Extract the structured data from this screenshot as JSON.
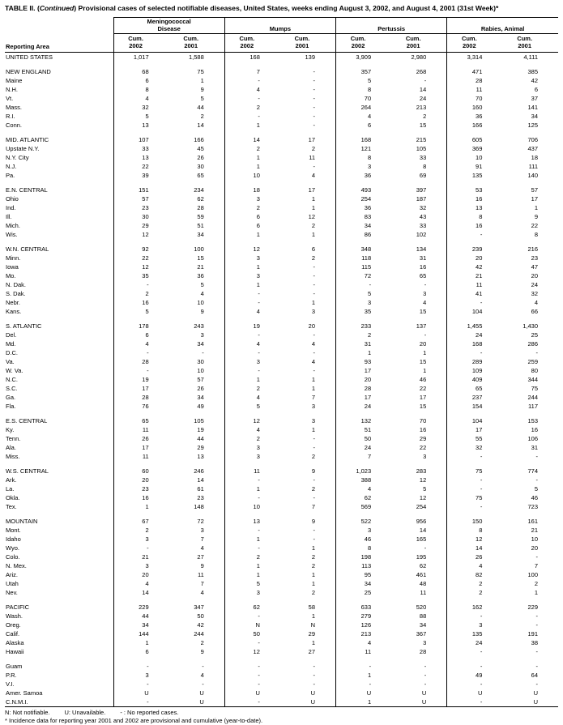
{
  "title": {
    "parts": [
      "TABLE II. (",
      "Continued",
      ") Provisional cases of selected notifiable diseases, United States, weeks ending August 3, 2002, and August 4, 2001 (31st Week)*"
    ]
  },
  "table": {
    "reporting_area_label": "Reporting Area",
    "cum_label": "Cum.",
    "years": [
      "2002",
      "2001"
    ],
    "groups": [
      "Meningococcal\nDisease",
      "Mumps",
      "Pertussis",
      "Rabies, Animal"
    ],
    "sections": [
      {
        "rows": [
          {
            "area": "UNITED STATES",
            "v": [
              "1,017",
              "1,588",
              "168",
              "139",
              "3,909",
              "2,980",
              "3,314",
              "4,111"
            ]
          }
        ]
      },
      {
        "rows": [
          {
            "area": "NEW ENGLAND",
            "v": [
              "68",
              "75",
              "7",
              "-",
              "357",
              "268",
              "471",
              "385"
            ]
          },
          {
            "area": "Maine",
            "v": [
              "6",
              "1",
              "-",
              "-",
              "5",
              "-",
              "28",
              "42"
            ]
          },
          {
            "area": "N.H.",
            "v": [
              "8",
              "9",
              "4",
              "-",
              "8",
              "14",
              "11",
              "6"
            ]
          },
          {
            "area": "Vt.",
            "v": [
              "4",
              "5",
              "-",
              "-",
              "70",
              "24",
              "70",
              "37"
            ]
          },
          {
            "area": "Mass.",
            "v": [
              "32",
              "44",
              "2",
              "-",
              "264",
              "213",
              "160",
              "141"
            ]
          },
          {
            "area": "R.I.",
            "v": [
              "5",
              "2",
              "-",
              "-",
              "4",
              "2",
              "36",
              "34"
            ]
          },
          {
            "area": "Conn.",
            "v": [
              "13",
              "14",
              "1",
              "-",
              "6",
              "15",
              "166",
              "125"
            ]
          }
        ]
      },
      {
        "rows": [
          {
            "area": "MID. ATLANTIC",
            "v": [
              "107",
              "166",
              "14",
              "17",
              "168",
              "215",
              "605",
              "706"
            ]
          },
          {
            "area": "Upstate N.Y.",
            "v": [
              "33",
              "45",
              "2",
              "2",
              "121",
              "105",
              "369",
              "437"
            ]
          },
          {
            "area": "N.Y. City",
            "v": [
              "13",
              "26",
              "1",
              "11",
              "8",
              "33",
              "10",
              "18"
            ]
          },
          {
            "area": "N.J.",
            "v": [
              "22",
              "30",
              "1",
              "-",
              "3",
              "8",
              "91",
              "111"
            ]
          },
          {
            "area": "Pa.",
            "v": [
              "39",
              "65",
              "10",
              "4",
              "36",
              "69",
              "135",
              "140"
            ]
          }
        ]
      },
      {
        "rows": [
          {
            "area": "E.N. CENTRAL",
            "v": [
              "151",
              "234",
              "18",
              "17",
              "493",
              "397",
              "53",
              "57"
            ]
          },
          {
            "area": "Ohio",
            "v": [
              "57",
              "62",
              "3",
              "1",
              "254",
              "187",
              "16",
              "17"
            ]
          },
          {
            "area": "Ind.",
            "v": [
              "23",
              "28",
              "2",
              "1",
              "36",
              "32",
              "13",
              "1"
            ]
          },
          {
            "area": "Ill.",
            "v": [
              "30",
              "59",
              "6",
              "12",
              "83",
              "43",
              "8",
              "9"
            ]
          },
          {
            "area": "Mich.",
            "v": [
              "29",
              "51",
              "6",
              "2",
              "34",
              "33",
              "16",
              "22"
            ]
          },
          {
            "area": "Wis.",
            "v": [
              "12",
              "34",
              "1",
              "1",
              "86",
              "102",
              "-",
              "8"
            ]
          }
        ]
      },
      {
        "rows": [
          {
            "area": "W.N. CENTRAL",
            "v": [
              "92",
              "100",
              "12",
              "6",
              "348",
              "134",
              "239",
              "216"
            ]
          },
          {
            "area": "Minn.",
            "v": [
              "22",
              "15",
              "3",
              "2",
              "118",
              "31",
              "20",
              "23"
            ]
          },
          {
            "area": "Iowa",
            "v": [
              "12",
              "21",
              "1",
              "-",
              "115",
              "16",
              "42",
              "47"
            ]
          },
          {
            "area": "Mo.",
            "v": [
              "35",
              "36",
              "3",
              "-",
              "72",
              "65",
              "21",
              "20"
            ]
          },
          {
            "area": "N. Dak.",
            "v": [
              "-",
              "5",
              "1",
              "-",
              "-",
              "-",
              "11",
              "24"
            ]
          },
          {
            "area": "S. Dak.",
            "v": [
              "2",
              "4",
              "-",
              "-",
              "5",
              "3",
              "41",
              "32"
            ]
          },
          {
            "area": "Nebr.",
            "v": [
              "16",
              "10",
              "-",
              "1",
              "3",
              "4",
              "-",
              "4"
            ]
          },
          {
            "area": "Kans.",
            "v": [
              "5",
              "9",
              "4",
              "3",
              "35",
              "15",
              "104",
              "66"
            ]
          }
        ]
      },
      {
        "rows": [
          {
            "area": "S. ATLANTIC",
            "v": [
              "178",
              "243",
              "19",
              "20",
              "233",
              "137",
              "1,455",
              "1,430"
            ]
          },
          {
            "area": "Del.",
            "v": [
              "6",
              "3",
              "-",
              "-",
              "2",
              "-",
              "24",
              "25"
            ]
          },
          {
            "area": "Md.",
            "v": [
              "4",
              "34",
              "4",
              "4",
              "31",
              "20",
              "168",
              "286"
            ]
          },
          {
            "area": "D.C.",
            "v": [
              "-",
              "-",
              "-",
              "-",
              "1",
              "1",
              "-",
              "-"
            ]
          },
          {
            "area": "Va.",
            "v": [
              "28",
              "30",
              "3",
              "4",
              "93",
              "15",
              "289",
              "259"
            ]
          },
          {
            "area": "W. Va.",
            "v": [
              "-",
              "10",
              "-",
              "-",
              "17",
              "1",
              "109",
              "80"
            ]
          },
          {
            "area": "N.C.",
            "v": [
              "19",
              "57",
              "1",
              "1",
              "20",
              "46",
              "409",
              "344"
            ]
          },
          {
            "area": "S.C.",
            "v": [
              "17",
              "26",
              "2",
              "1",
              "28",
              "22",
              "65",
              "75"
            ]
          },
          {
            "area": "Ga.",
            "v": [
              "28",
              "34",
              "4",
              "7",
              "17",
              "17",
              "237",
              "244"
            ]
          },
          {
            "area": "Fla.",
            "v": [
              "76",
              "49",
              "5",
              "3",
              "24",
              "15",
              "154",
              "117"
            ]
          }
        ]
      },
      {
        "rows": [
          {
            "area": "E.S. CENTRAL",
            "v": [
              "65",
              "105",
              "12",
              "3",
              "132",
              "70",
              "104",
              "153"
            ]
          },
          {
            "area": "Ky.",
            "v": [
              "11",
              "19",
              "4",
              "1",
              "51",
              "16",
              "17",
              "16"
            ]
          },
          {
            "area": "Tenn.",
            "v": [
              "26",
              "44",
              "2",
              "-",
              "50",
              "29",
              "55",
              "106"
            ]
          },
          {
            "area": "Ala.",
            "v": [
              "17",
              "29",
              "3",
              "-",
              "24",
              "22",
              "32",
              "31"
            ]
          },
          {
            "area": "Miss.",
            "v": [
              "11",
              "13",
              "3",
              "2",
              "7",
              "3",
              "-",
              "-"
            ]
          }
        ]
      },
      {
        "rows": [
          {
            "area": "W.S. CENTRAL",
            "v": [
              "60",
              "246",
              "11",
              "9",
              "1,023",
              "283",
              "75",
              "774"
            ]
          },
          {
            "area": "Ark.",
            "v": [
              "20",
              "14",
              "-",
              "-",
              "388",
              "12",
              "-",
              "-"
            ]
          },
          {
            "area": "La.",
            "v": [
              "23",
              "61",
              "1",
              "2",
              "4",
              "5",
              "-",
              "5"
            ]
          },
          {
            "area": "Okla.",
            "v": [
              "16",
              "23",
              "-",
              "-",
              "62",
              "12",
              "75",
              "46"
            ]
          },
          {
            "area": "Tex.",
            "v": [
              "1",
              "148",
              "10",
              "7",
              "569",
              "254",
              "-",
              "723"
            ]
          }
        ]
      },
      {
        "rows": [
          {
            "area": "MOUNTAIN",
            "v": [
              "67",
              "72",
              "13",
              "9",
              "522",
              "956",
              "150",
              "161"
            ]
          },
          {
            "area": "Mont.",
            "v": [
              "2",
              "3",
              "-",
              "-",
              "3",
              "14",
              "8",
              "21"
            ]
          },
          {
            "area": "Idaho",
            "v": [
              "3",
              "7",
              "1",
              "-",
              "46",
              "165",
              "12",
              "10"
            ]
          },
          {
            "area": "Wyo.",
            "v": [
              "-",
              "4",
              "-",
              "1",
              "8",
              "-",
              "14",
              "20"
            ]
          },
          {
            "area": "Colo.",
            "v": [
              "21",
              "27",
              "2",
              "2",
              "198",
              "195",
              "26",
              "-"
            ]
          },
          {
            "area": "N. Mex.",
            "v": [
              "3",
              "9",
              "1",
              "2",
              "113",
              "62",
              "4",
              "7"
            ]
          },
          {
            "area": "Ariz.",
            "v": [
              "20",
              "11",
              "1",
              "1",
              "95",
              "461",
              "82",
              "100"
            ]
          },
          {
            "area": "Utah",
            "v": [
              "4",
              "7",
              "5",
              "1",
              "34",
              "48",
              "2",
              "2"
            ]
          },
          {
            "area": "Nev.",
            "v": [
              "14",
              "4",
              "3",
              "2",
              "25",
              "11",
              "2",
              "1"
            ]
          }
        ]
      },
      {
        "rows": [
          {
            "area": "PACIFIC",
            "v": [
              "229",
              "347",
              "62",
              "58",
              "633",
              "520",
              "162",
              "229"
            ]
          },
          {
            "area": "Wash.",
            "v": [
              "44",
              "50",
              "-",
              "1",
              "279",
              "88",
              "-",
              "-"
            ]
          },
          {
            "area": "Oreg.",
            "v": [
              "34",
              "42",
              "N",
              "N",
              "126",
              "34",
              "3",
              "-"
            ]
          },
          {
            "area": "Calif.",
            "v": [
              "144",
              "244",
              "50",
              "29",
              "213",
              "367",
              "135",
              "191"
            ]
          },
          {
            "area": "Alaska",
            "v": [
              "1",
              "2",
              "-",
              "1",
              "4",
              "3",
              "24",
              "38"
            ]
          },
          {
            "area": "Hawaii",
            "v": [
              "6",
              "9",
              "12",
              "27",
              "11",
              "28",
              "-",
              "-"
            ]
          }
        ]
      },
      {
        "rows": [
          {
            "area": "Guam",
            "v": [
              "-",
              "-",
              "-",
              "-",
              "-",
              "-",
              "-",
              "-"
            ]
          },
          {
            "area": "P.R.",
            "v": [
              "3",
              "4",
              "-",
              "-",
              "1",
              "-",
              "49",
              "64"
            ]
          },
          {
            "area": "V.I.",
            "v": [
              "-",
              "-",
              "-",
              "-",
              "-",
              "-",
              "-",
              "-"
            ]
          },
          {
            "area": "Amer. Samoa",
            "v": [
              "U",
              "U",
              "U",
              "U",
              "U",
              "U",
              "U",
              "U"
            ]
          },
          {
            "area": "C.N.M.I.",
            "v": [
              "-",
              "U",
              "-",
              "U",
              "1",
              "U",
              "-",
              "U"
            ]
          }
        ]
      }
    ]
  },
  "footnotes": {
    "legend": [
      "N: Not notifiable.",
      "U: Unavailable.",
      "- : No reported cases."
    ],
    "note": "* Incidence data for reporting year 2001 and 2002 are provisional and cumulative (year-to-date)."
  }
}
